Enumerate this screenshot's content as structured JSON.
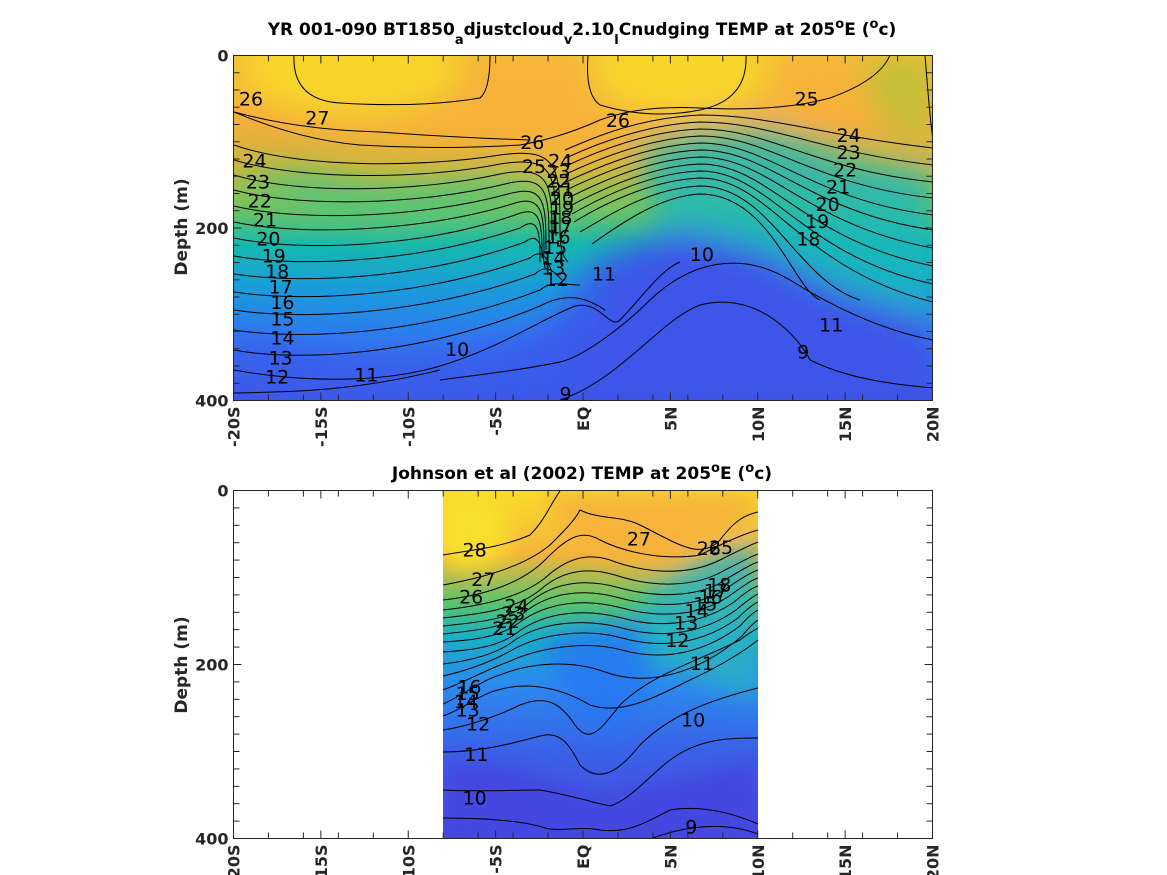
{
  "chart_data": [
    {
      "type": "contour",
      "title_parts": {
        "t1": "YR 001-090 BT1850",
        "s1": "a",
        "t2": "djustcloud",
        "s2": "v",
        "t3": "2.10",
        "s3": "l",
        "t4": "Cnudging TEMP at 205",
        "p1": "o",
        "t5": "E (",
        "p2": "o",
        "t6": "c)"
      },
      "ylabel": "Depth (m)",
      "xlim": [
        -20,
        20
      ],
      "ylim": [
        400,
        0
      ],
      "x_tick_labels": [
        "-20S",
        "-15S",
        "-10S",
        "-5S",
        "EQ",
        "5N",
        "10N",
        "15N",
        "20N"
      ],
      "y_tick_labels": [
        "0",
        "200",
        "400"
      ],
      "data_x_range": [
        -20,
        20
      ],
      "colorscale": "parula",
      "contour_interval": 1,
      "contour_labels": [
        {
          "text": "26",
          "x": -19.0,
          "y": 50
        },
        {
          "text": "27",
          "x": -15.2,
          "y": 72
        },
        {
          "text": "26",
          "x": -2.9,
          "y": 100
        },
        {
          "text": "25",
          "x": -2.8,
          "y": 128
        },
        {
          "text": "24",
          "x": -1.3,
          "y": 122
        },
        {
          "text": "23",
          "x": -1.4,
          "y": 134
        },
        {
          "text": "22",
          "x": -1.4,
          "y": 145
        },
        {
          "text": "21",
          "x": -1.2,
          "y": 155
        },
        {
          "text": "20",
          "x": -1.2,
          "y": 165
        },
        {
          "text": "19",
          "x": -1.2,
          "y": 176
        },
        {
          "text": "18",
          "x": -1.3,
          "y": 187
        },
        {
          "text": "17",
          "x": -1.3,
          "y": 198
        },
        {
          "text": "16",
          "x": -1.4,
          "y": 210
        },
        {
          "text": "15",
          "x": -1.6,
          "y": 222
        },
        {
          "text": "14",
          "x": -1.7,
          "y": 234
        },
        {
          "text": "13",
          "x": -1.7,
          "y": 246
        },
        {
          "text": "12",
          "x": -1.5,
          "y": 259
        },
        {
          "text": "11",
          "x": 1.2,
          "y": 253
        },
        {
          "text": "10",
          "x": 6.8,
          "y": 230
        },
        {
          "text": "26",
          "x": 2.0,
          "y": 75
        },
        {
          "text": "25",
          "x": 12.8,
          "y": 50
        },
        {
          "text": "24",
          "x": 15.2,
          "y": 92
        },
        {
          "text": "23",
          "x": 15.2,
          "y": 112
        },
        {
          "text": "22",
          "x": 15.0,
          "y": 132
        },
        {
          "text": "21",
          "x": 14.6,
          "y": 152
        },
        {
          "text": "20",
          "x": 14.0,
          "y": 172
        },
        {
          "text": "19",
          "x": 13.4,
          "y": 192
        },
        {
          "text": "18",
          "x": 12.9,
          "y": 212
        },
        {
          "text": "11",
          "x": 14.2,
          "y": 312
        },
        {
          "text": "9",
          "x": 12.6,
          "y": 343
        },
        {
          "text": "9",
          "x": -1.0,
          "y": 392
        },
        {
          "text": "10",
          "x": -7.2,
          "y": 340
        },
        {
          "text": "11",
          "x": -12.4,
          "y": 370
        },
        {
          "text": "12",
          "x": -17.5,
          "y": 372
        },
        {
          "text": "13",
          "x": -17.3,
          "y": 350
        },
        {
          "text": "14",
          "x": -17.2,
          "y": 327
        },
        {
          "text": "15",
          "x": -17.2,
          "y": 305
        },
        {
          "text": "16",
          "x": -17.2,
          "y": 286
        },
        {
          "text": "17",
          "x": -17.3,
          "y": 268
        },
        {
          "text": "18",
          "x": -17.5,
          "y": 250
        },
        {
          "text": "19",
          "x": -17.7,
          "y": 232
        },
        {
          "text": "20",
          "x": -18.0,
          "y": 212
        },
        {
          "text": "21",
          "x": -18.2,
          "y": 190
        },
        {
          "text": "22",
          "x": -18.5,
          "y": 168
        },
        {
          "text": "23",
          "x": -18.6,
          "y": 146
        },
        {
          "text": "24",
          "x": -18.8,
          "y": 122
        }
      ]
    },
    {
      "type": "contour",
      "title_parts": {
        "t1": "Johnson et al (2002) TEMP at 205",
        "p1": "o",
        "t2": "E (",
        "p2": "o",
        "t3": "c)"
      },
      "ylabel": "Depth (m)",
      "xlim": [
        -20,
        20
      ],
      "ylim": [
        400,
        0
      ],
      "x_tick_labels": [
        "-20S",
        "-15S",
        "-10S",
        "-5S",
        "EQ",
        "5N",
        "10N",
        "15N",
        "20N"
      ],
      "y_tick_labels": [
        "0",
        "200",
        "400"
      ],
      "data_x_range": [
        -8,
        10
      ],
      "colorscale": "parula",
      "contour_interval": 1,
      "contour_labels": [
        {
          "text": "28",
          "x": -6.2,
          "y": 68
        },
        {
          "text": "27",
          "x": -5.7,
          "y": 102
        },
        {
          "text": "26",
          "x": -6.4,
          "y": 122
        },
        {
          "text": "27",
          "x": 3.2,
          "y": 55
        },
        {
          "text": "26",
          "x": 7.2,
          "y": 66
        },
        {
          "text": "25",
          "x": 7.9,
          "y": 65
        },
        {
          "text": "24",
          "x": -3.8,
          "y": 132
        },
        {
          "text": "23",
          "x": -4.0,
          "y": 141
        },
        {
          "text": "22",
          "x": -4.3,
          "y": 150
        },
        {
          "text": "21",
          "x": -4.5,
          "y": 158
        },
        {
          "text": "18",
          "x": 7.8,
          "y": 108
        },
        {
          "text": "17",
          "x": 7.6,
          "y": 115
        },
        {
          "text": "16",
          "x": 7.3,
          "y": 122
        },
        {
          "text": "15",
          "x": 7.0,
          "y": 130
        },
        {
          "text": "14",
          "x": 6.5,
          "y": 138
        },
        {
          "text": "13",
          "x": 5.9,
          "y": 152
        },
        {
          "text": "12",
          "x": 5.4,
          "y": 172
        },
        {
          "text": "11",
          "x": 6.8,
          "y": 198
        },
        {
          "text": "10",
          "x": 6.3,
          "y": 263
        },
        {
          "text": "9",
          "x": 6.2,
          "y": 386
        },
        {
          "text": "16",
          "x": -6.5,
          "y": 225
        },
        {
          "text": "15",
          "x": -6.6,
          "y": 233
        },
        {
          "text": "14",
          "x": -6.7,
          "y": 242
        },
        {
          "text": "13",
          "x": -6.6,
          "y": 252
        },
        {
          "text": "12",
          "x": -6.0,
          "y": 268
        },
        {
          "text": "11",
          "x": -6.1,
          "y": 303
        },
        {
          "text": "10",
          "x": -6.2,
          "y": 353
        }
      ]
    }
  ]
}
